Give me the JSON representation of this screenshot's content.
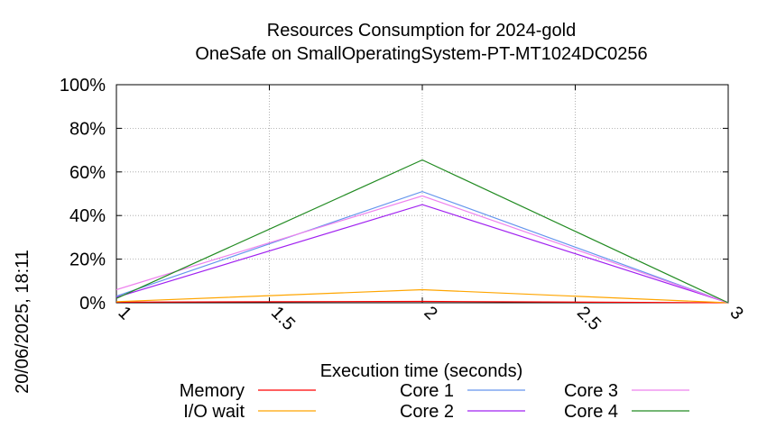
{
  "chart_data": {
    "type": "line",
    "title": "Resources Consumption for 2024-gold",
    "subtitle": "OneSafe on SmallOperatingSystem-PT-MT1024DC0256",
    "xlabel": "Execution time (seconds)",
    "ylabel": "",
    "side_label": "20/06/2025, 18:11",
    "xlim": [
      1,
      3
    ],
    "ylim": [
      0,
      100
    ],
    "x_ticks": [
      1,
      1.5,
      2,
      2.5,
      3
    ],
    "x_tick_labels": [
      "1",
      "1.5",
      "2",
      "2.5",
      "3"
    ],
    "y_ticks": [
      0,
      20,
      40,
      60,
      80,
      100
    ],
    "y_tick_labels": [
      "0%",
      "20%",
      "40%",
      "60%",
      "80%",
      "100%"
    ],
    "grid": true,
    "legend_position": "bottom",
    "x": [
      1,
      2,
      3
    ],
    "series": [
      {
        "name": "Memory",
        "color": "#ff0000",
        "values": [
          0.3,
          0.6,
          0
        ]
      },
      {
        "name": "I/O wait",
        "color": "#ffa500",
        "values": [
          0.5,
          6,
          0
        ]
      },
      {
        "name": "Core 1",
        "color": "#6495ed",
        "values": [
          3,
          51,
          0
        ]
      },
      {
        "name": "Core 2",
        "color": "#a020f0",
        "values": [
          2.5,
          45,
          0
        ]
      },
      {
        "name": "Core 3",
        "color": "#ee82ee",
        "values": [
          6,
          49,
          0
        ]
      },
      {
        "name": "Core 4",
        "color": "#228b22",
        "values": [
          2,
          65.5,
          0
        ]
      }
    ]
  }
}
